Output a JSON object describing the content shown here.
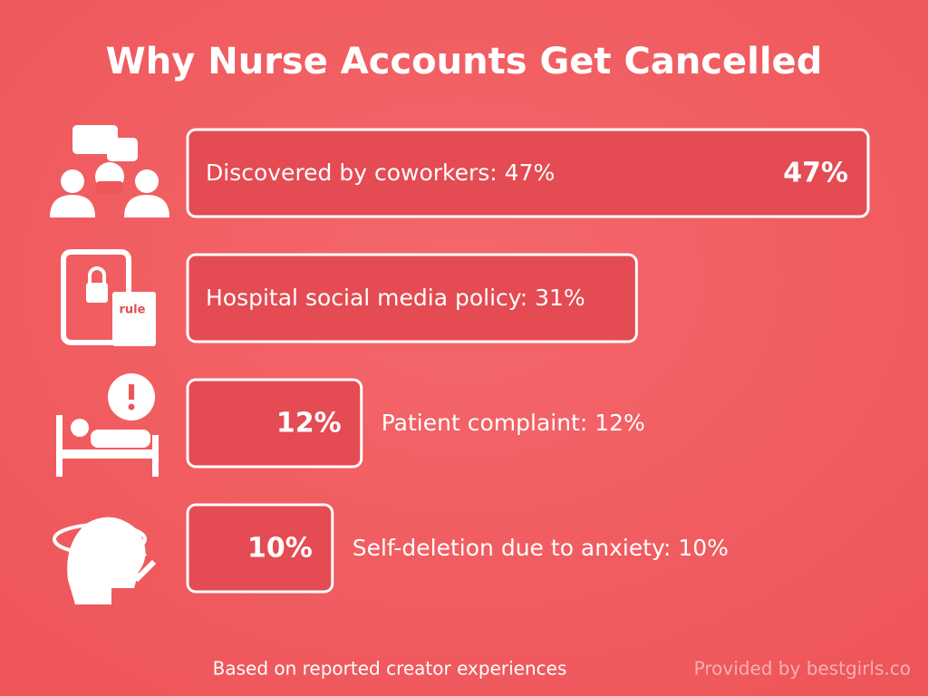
{
  "chart_data": {
    "type": "bar",
    "orientation": "horizontal",
    "title": "Why Nurse Accounts Get Cancelled",
    "categories": [
      "Discovered by coworkers: 47%",
      "Hospital social media policy: 31%",
      "Patient complaint: 12%",
      "Self-deletion due to anxiety: 10%"
    ],
    "values": [
      47,
      31,
      12,
      10
    ],
    "value_labels": [
      "47%",
      null,
      "12%",
      "10%"
    ],
    "color": "#e44b53",
    "footnote": "Based on reported creator experiences",
    "credit": "Provided by bestgirls.co",
    "icon_text": "rule"
  }
}
